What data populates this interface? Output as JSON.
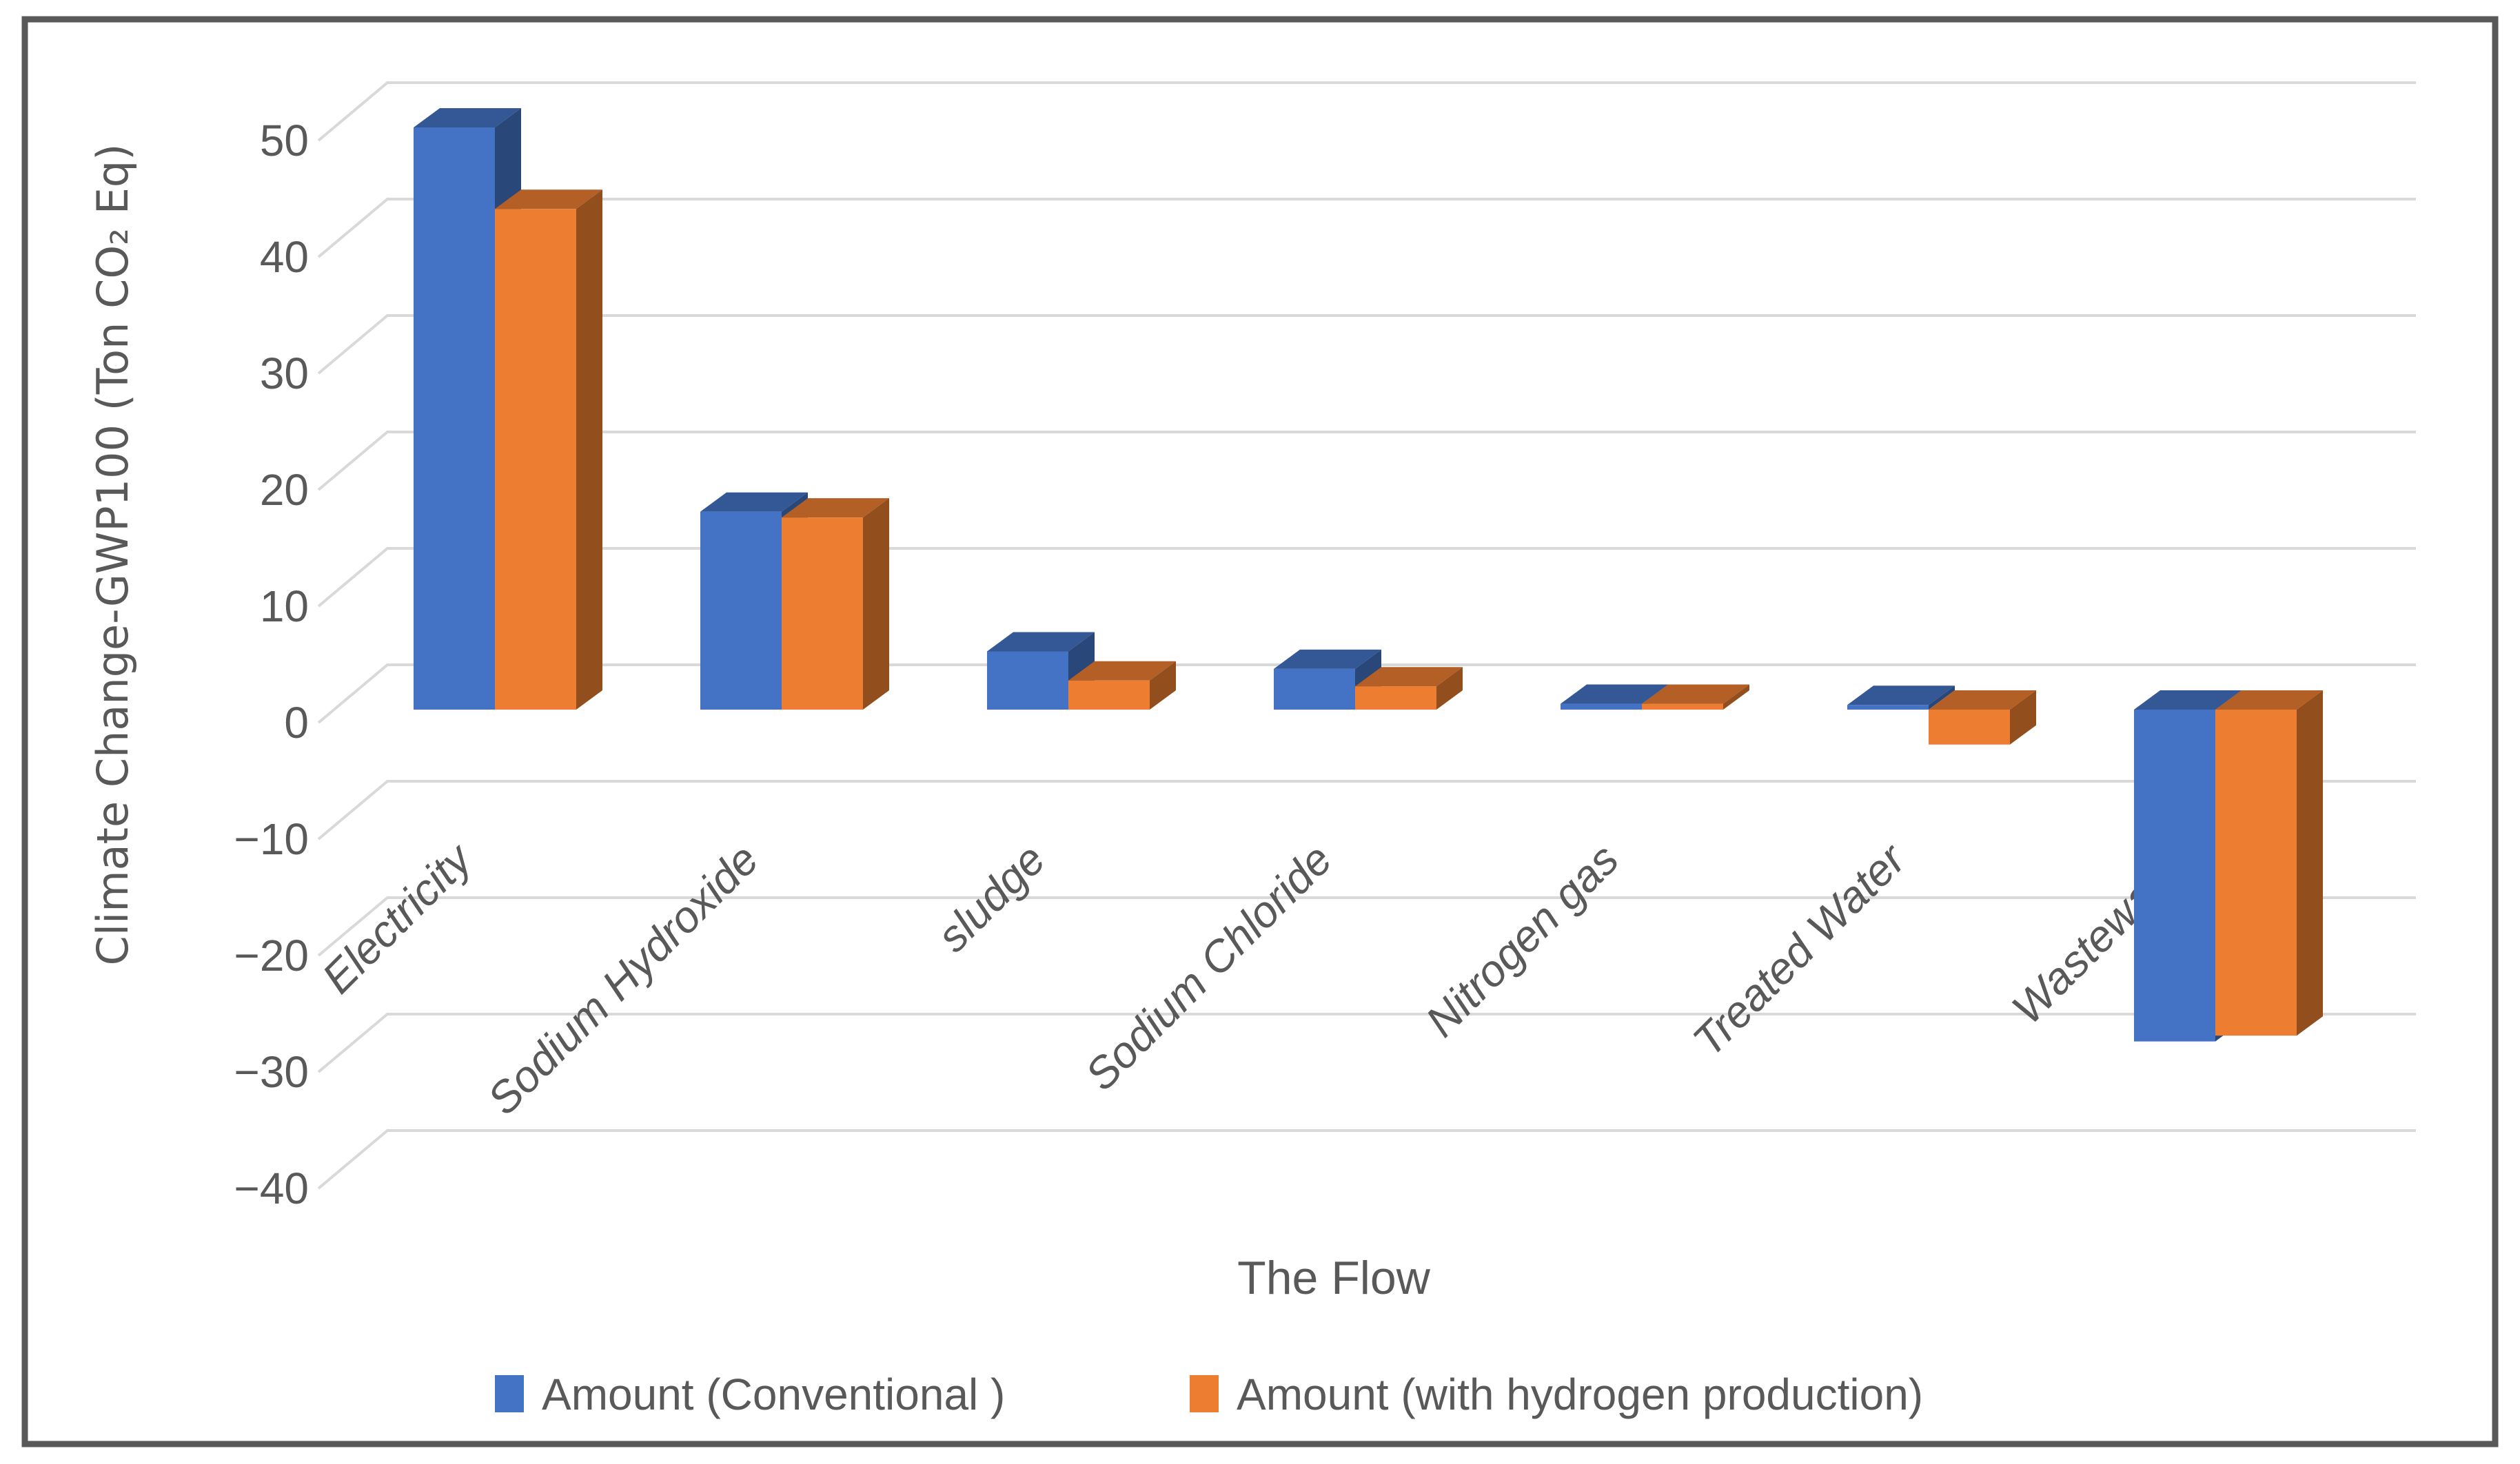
{
  "figure": {
    "border_color": "#595959",
    "background": "#FFFFFF"
  },
  "chart_data": {
    "type": "bar",
    "projection": "3d",
    "title": "",
    "xlabel": "The Flow",
    "ylabel": "Climate Change-GWP100 (Ton CO₂ Eq)",
    "categories": [
      "Electricity",
      "Sodium Hydroxide",
      "sludge",
      "Sodium Chloride",
      "Nitrogen gas",
      "Treated Water",
      "Wastewater"
    ],
    "series": [
      {
        "name": "Amount (Conventional )",
        "color": "#4472C4",
        "values": [
          50,
          17,
          5,
          3.5,
          0.5,
          0.4,
          -28.5
        ]
      },
      {
        "name": "Amount (with hydrogen production)",
        "color": "#ED7D31",
        "values": [
          43,
          16.5,
          2.5,
          2,
          0.5,
          -3,
          -28
        ]
      }
    ],
    "yticks": [
      50,
      40,
      30,
      20,
      10,
      0,
      -10,
      -20,
      -30,
      -40
    ],
    "ytick_labels": [
      "50",
      "40",
      "30",
      "20",
      "10",
      "0",
      "−10",
      "−20",
      "−30",
      "−40"
    ],
    "ylim": [
      -40,
      55
    ],
    "grid": true,
    "gridline_color": "#D9D9D9",
    "text_color": "#595959",
    "legend_position": "bottom"
  }
}
